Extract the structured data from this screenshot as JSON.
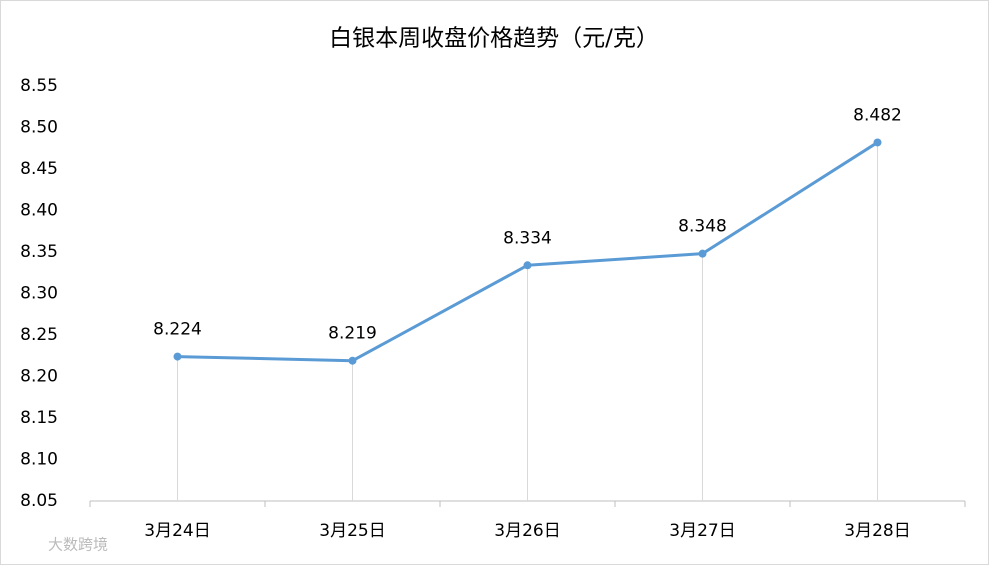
{
  "chart_data": {
    "type": "line",
    "title": "白银本周收盘价格趋势（元/克）",
    "categories": [
      "3月24日",
      "3月25日",
      "3月26日",
      "3月27日",
      "3月28日"
    ],
    "series": [
      {
        "color": "#5b9bd5",
        "values": [
          8.224,
          8.219,
          8.334,
          8.348,
          8.482
        ]
      }
    ],
    "ylim": [
      8.05,
      8.55
    ],
    "yticks": [
      8.05,
      {
        "value": 8.1,
        "label": "8.10"
      },
      8.15,
      {
        "value": 8.2,
        "label": "8.20"
      },
      8.25,
      {
        "value": 8.3,
        "label": "8.30"
      },
      8.35,
      {
        "value": 8.4,
        "label": "8.40"
      },
      8.45,
      {
        "value": 8.5,
        "label": "8.50"
      },
      8.55
    ],
    "grid": false,
    "drop_lines": true,
    "data_labels": true
  },
  "watermark": "大数跨境"
}
